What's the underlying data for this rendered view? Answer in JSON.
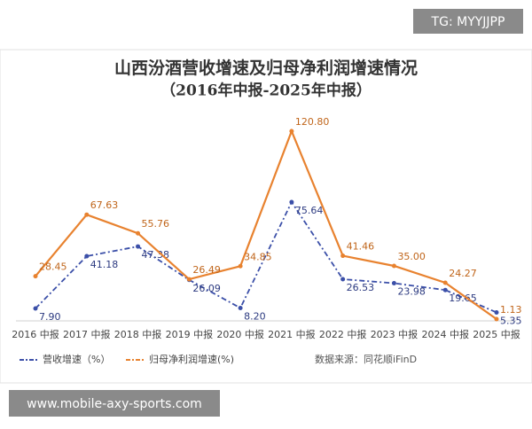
{
  "badge": "TG: MYYJJPP",
  "footer": "www.mobile-axy-sports.com",
  "chart_data": {
    "type": "line",
    "title": "山西汾酒营收增速及归母净利润增速情况",
    "subtitle": "（2016年中报-2025年中报）",
    "categories": [
      "2016 中报",
      "2017 中报",
      "2018 中报",
      "2019 中报",
      "2020 中报",
      "2021 中报",
      "2022 中报",
      "2023 中报",
      "2024 中报",
      "2025 中报"
    ],
    "series": [
      {
        "name": "营收增速（%）",
        "color": "#3b4fa8",
        "values": [
          7.9,
          41.18,
          47.38,
          26.09,
          8.2,
          75.64,
          26.53,
          23.98,
          19.65,
          5.35
        ],
        "value_labels": [
          "7.90",
          "41.18",
          "47.38",
          "26.09",
          "8.20",
          "75.64",
          "26.53",
          "23.98",
          "19.65",
          "5.35"
        ]
      },
      {
        "name": "归母净利润增速(%)",
        "color": "#e8822f",
        "values": [
          28.45,
          67.63,
          55.76,
          26.49,
          34.85,
          120.8,
          41.46,
          35.0,
          24.27,
          1.13
        ],
        "value_labels": [
          "28.45",
          "67.63",
          "55.76",
          "26.49",
          "34.85",
          "120.80",
          "41.46",
          "35.00",
          "24.27",
          "1.13"
        ]
      }
    ],
    "ylim": [
      0,
      140
    ],
    "source": "数据来源：同花顺iFinD"
  }
}
